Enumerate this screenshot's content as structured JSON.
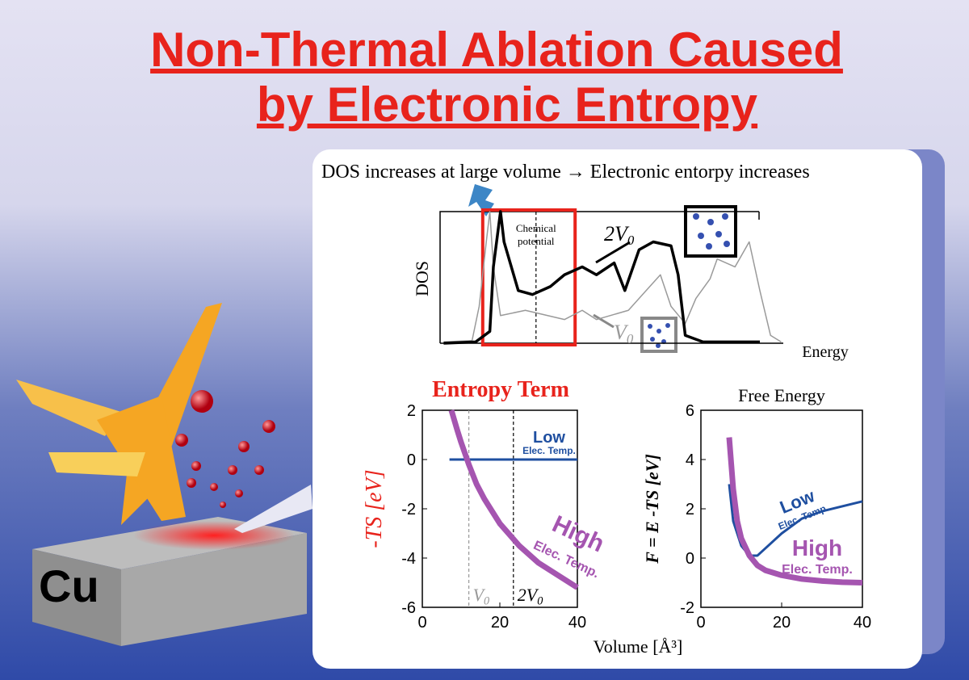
{
  "header": {
    "title_lines": [
      "Non-Thermal Ablation Caused",
      "by Electronic Entropy"
    ]
  },
  "illustration": {
    "label": "Cu"
  },
  "panel": {
    "caption": "DOS increases at large volume → Electronic entorpy increases",
    "xlabel": "Volume [Å³]"
  },
  "chart_data": [
    {
      "type": "line",
      "ylabel": "DOS",
      "xlabel": "Energy",
      "xlim": [
        0,
        100
      ],
      "ylim": [
        0,
        100
      ],
      "annotation": [
        "Chemical",
        "potential"
      ],
      "vlines": [
        27
      ],
      "highlight": [
        12,
        38
      ],
      "series": [
        {
          "name": "2V",
          "name_sub": "0",
          "color": "#000000",
          "x": [
            1,
            10,
            14,
            15,
            17,
            18,
            22,
            26,
            31,
            35,
            40,
            44,
            49,
            52,
            56,
            60,
            65,
            67,
            69,
            74,
            90
          ],
          "values": [
            0,
            1,
            9,
            58,
            100,
            77,
            40,
            37,
            43,
            52,
            58,
            52,
            61,
            40,
            71,
            77,
            74,
            52,
            6,
            1,
            1
          ]
        },
        {
          "name": "V",
          "name_sub": "0",
          "color": "#9a9a9a",
          "x": [
            1,
            9,
            11,
            13,
            14,
            15,
            17,
            24,
            35,
            40,
            44,
            53,
            58,
            62,
            65,
            69,
            72,
            76,
            78,
            83,
            87,
            90,
            93,
            96
          ],
          "values": [
            1,
            2,
            28,
            77,
            100,
            58,
            21,
            25,
            18,
            25,
            18,
            25,
            40,
            52,
            28,
            15,
            34,
            49,
            64,
            58,
            77,
            40,
            6,
            1
          ]
        }
      ]
    },
    {
      "type": "line",
      "title": "Entropy Term",
      "ylabel": "-TS [eV]",
      "xlim": [
        0,
        40
      ],
      "ylim": [
        -6,
        2
      ],
      "xticks": [
        0,
        20,
        40
      ],
      "yticks": [
        -6,
        -4,
        -2,
        0,
        2
      ],
      "vlines": [
        {
          "x": 12,
          "label": "V",
          "sub": "0"
        },
        {
          "x": 23.5,
          "label": "2V",
          "sub": "0"
        }
      ],
      "series": [
        {
          "name": "Low",
          "note": "Elec. Temp.",
          "color": "#1f4fa0",
          "x": [
            7,
            40
          ],
          "values": [
            0,
            0
          ]
        },
        {
          "name": "High",
          "note": "Elec. Temp.",
          "color": "#a555b0",
          "x": [
            7.5,
            9,
            10,
            12,
            14,
            16,
            20,
            25,
            30,
            35,
            40
          ],
          "values": [
            2,
            1.2,
            0.7,
            -0.2,
            -1.0,
            -1.6,
            -2.6,
            -3.5,
            -4.2,
            -4.7,
            -5.2
          ]
        }
      ]
    },
    {
      "type": "line",
      "title": "Free Energy",
      "ylabel": "F = E -TS [eV]",
      "xlim": [
        0,
        40
      ],
      "ylim": [
        -2,
        6
      ],
      "xticks": [
        0,
        20,
        40
      ],
      "yticks": [
        -2,
        0,
        2,
        4,
        6
      ],
      "series": [
        {
          "name": "Low",
          "note": "Elec. Temp.",
          "color": "#1f4fa0",
          "x": [
            7,
            8,
            10,
            12,
            14,
            16,
            20,
            25,
            30,
            35,
            40
          ],
          "values": [
            3.0,
            1.5,
            0.5,
            0.1,
            0.1,
            0.4,
            1.0,
            1.6,
            1.9,
            2.1,
            2.3
          ]
        },
        {
          "name": "High",
          "note": "Elec. Temp.",
          "color": "#a555b0",
          "x": [
            7,
            8,
            9,
            10,
            12,
            14,
            16,
            20,
            25,
            30,
            35,
            40
          ],
          "values": [
            4.9,
            2.8,
            1.5,
            0.8,
            0.1,
            -0.3,
            -0.5,
            -0.7,
            -0.85,
            -0.93,
            -0.98,
            -1.0
          ]
        }
      ]
    }
  ]
}
